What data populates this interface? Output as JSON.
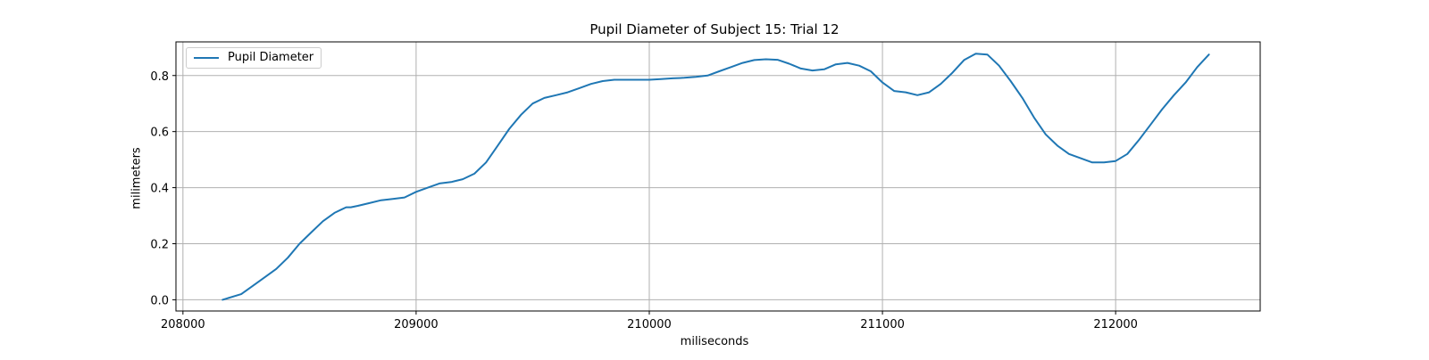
{
  "chart_data": {
    "type": "line",
    "title": "Pupil Diameter of Subject 15: Trial 12",
    "xlabel": "miliseconds",
    "ylabel": "milimeters",
    "xlim": [
      207970,
      212620
    ],
    "ylim": [
      -0.04,
      0.92
    ],
    "xticks": [
      208000,
      209000,
      210000,
      211000,
      212000
    ],
    "yticks": [
      0.0,
      0.2,
      0.4,
      0.6,
      0.8
    ],
    "xtick_labels": [
      "208000",
      "209000",
      "210000",
      "211000",
      "212000"
    ],
    "ytick_labels": [
      "0.0",
      "0.2",
      "0.4",
      "0.6",
      "0.8"
    ],
    "grid": true,
    "legend_position": "top-left",
    "colors": {
      "series": "#1f77b4",
      "grid": "#b0b0b0",
      "axes": "#000000"
    },
    "series": [
      {
        "name": "Pupil Diameter",
        "x": [
          208170,
          208250,
          208300,
          208350,
          208400,
          208450,
          208500,
          208550,
          208600,
          208650,
          208700,
          208720,
          208750,
          208800,
          208850,
          208900,
          208950,
          209000,
          209050,
          209100,
          209150,
          209200,
          209250,
          209300,
          209350,
          209400,
          209450,
          209500,
          209550,
          209600,
          209650,
          209700,
          209750,
          209800,
          209850,
          209900,
          209950,
          210000,
          210050,
          210100,
          210150,
          210200,
          210250,
          210300,
          210350,
          210400,
          210450,
          210500,
          210550,
          210600,
          210650,
          210700,
          210750,
          210800,
          210850,
          210900,
          210950,
          211000,
          211050,
          211100,
          211150,
          211200,
          211250,
          211300,
          211350,
          211400,
          211450,
          211500,
          211550,
          211600,
          211650,
          211700,
          211750,
          211800,
          211850,
          211900,
          211950,
          212000,
          212050,
          212100,
          212150,
          212200,
          212250,
          212300,
          212350,
          212400
        ],
        "y": [
          0.0,
          0.02,
          0.05,
          0.08,
          0.11,
          0.15,
          0.2,
          0.24,
          0.28,
          0.31,
          0.33,
          0.33,
          0.335,
          0.345,
          0.355,
          0.36,
          0.365,
          0.385,
          0.4,
          0.415,
          0.42,
          0.43,
          0.45,
          0.49,
          0.55,
          0.61,
          0.66,
          0.7,
          0.72,
          0.73,
          0.74,
          0.755,
          0.77,
          0.78,
          0.785,
          0.785,
          0.785,
          0.785,
          0.787,
          0.79,
          0.792,
          0.795,
          0.8,
          0.815,
          0.83,
          0.845,
          0.855,
          0.858,
          0.856,
          0.842,
          0.825,
          0.818,
          0.822,
          0.84,
          0.845,
          0.835,
          0.815,
          0.775,
          0.745,
          0.74,
          0.73,
          0.74,
          0.77,
          0.81,
          0.855,
          0.878,
          0.875,
          0.835,
          0.78,
          0.72,
          0.65,
          0.59,
          0.55,
          0.52,
          0.505,
          0.49,
          0.49,
          0.495,
          0.52,
          0.57,
          0.625,
          0.68,
          0.73,
          0.775,
          0.83,
          0.875
        ]
      }
    ]
  }
}
